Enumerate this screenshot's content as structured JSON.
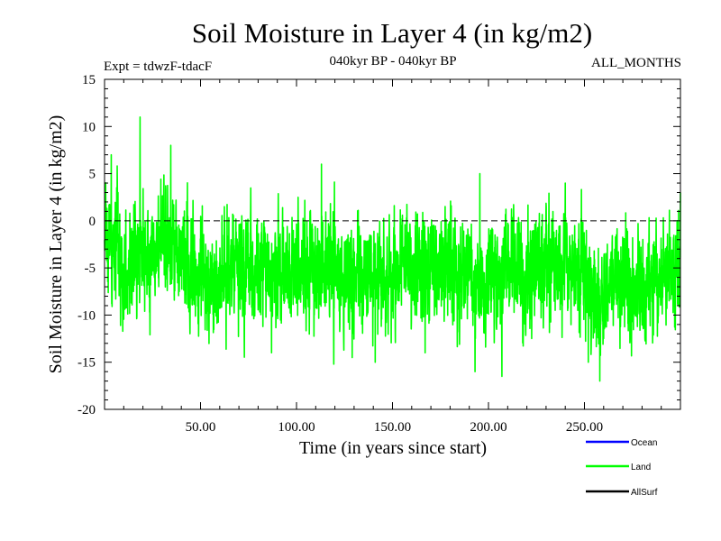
{
  "chart_data": {
    "type": "line",
    "title": "Soil Moisture in Layer 4 (in kg/m2)",
    "subtitle_left": "Expt = tdwzF-tdacF",
    "subtitle_center": "040kyr BP - 040kyr BP",
    "subtitle_right": "ALL_MONTHS",
    "xlabel": "Time (in years since start)",
    "ylabel": "Soil Moisture in Layer 4 (in kg/m2)",
    "xlim": [
      0,
      300
    ],
    "ylim": [
      -20,
      15
    ],
    "x_ticks": [
      50,
      100,
      150,
      200,
      250
    ],
    "x_tick_labels": [
      "50.00",
      "100.00",
      "150.00",
      "200.00",
      "250.00"
    ],
    "y_ticks": [
      -20,
      -15,
      -10,
      -5,
      0,
      5,
      10,
      15
    ],
    "y_tick_labels": [
      "-20",
      "-15",
      "-10",
      "-5",
      "0",
      "5",
      "10",
      "15"
    ],
    "reference_line": 0,
    "legend_position": "bottom-right",
    "series": [
      {
        "name": "Ocean",
        "label": "Ocean",
        "color": "#0000ff",
        "values": []
      },
      {
        "name": "Land",
        "label": "Land",
        "color": "#00ff00",
        "anchors": {
          "x": [
            0,
            2,
            4,
            6,
            8,
            10,
            12,
            14,
            16,
            18,
            20,
            22,
            24,
            26,
            28,
            30,
            32,
            34,
            36,
            38,
            40,
            45,
            50,
            55,
            60,
            65,
            70,
            75,
            80,
            85,
            90,
            95,
            100,
            105,
            110,
            115,
            120,
            125,
            130,
            135,
            140,
            145,
            150,
            155,
            160,
            165,
            170,
            175,
            180,
            185,
            190,
            195,
            200,
            205,
            210,
            215,
            220,
            225,
            230,
            235,
            240,
            245,
            250,
            255,
            260,
            265,
            270,
            275,
            280,
            285,
            290,
            295,
            300
          ],
          "mean": [
            -2,
            -1,
            -2,
            -3,
            -5,
            -6,
            -5,
            -4,
            -4,
            -3,
            -3,
            -4,
            -4,
            -3,
            -3,
            -2,
            -2,
            -3,
            -3,
            -3,
            -4,
            -5,
            -5,
            -6,
            -6,
            -5,
            -5,
            -5,
            -6,
            -6,
            -6,
            -6,
            -5,
            -5,
            -5,
            -5,
            -5,
            -6,
            -6,
            -6,
            -6,
            -6,
            -6,
            -5,
            -5,
            -5,
            -5,
            -5,
            -5,
            -6,
            -6,
            -6,
            -6,
            -6,
            -6,
            -5,
            -5,
            -5,
            -5,
            -5,
            -5,
            -5,
            -5,
            -8,
            -8,
            -7,
            -7,
            -7,
            -7,
            -6,
            -6,
            -6,
            -5
          ]
        },
        "variability_sd": 2.8,
        "extremes": [
          {
            "x": 18.5,
            "y": 11
          },
          {
            "x": 34.5,
            "y": 8
          },
          {
            "x": 3.5,
            "y": 7
          },
          {
            "x": 113,
            "y": 6
          },
          {
            "x": 195.5,
            "y": 5
          },
          {
            "x": 240,
            "y": 4
          },
          {
            "x": 300,
            "y": 3
          },
          {
            "x": 258,
            "y": -17
          },
          {
            "x": 207,
            "y": -16.5
          },
          {
            "x": 193,
            "y": -16
          },
          {
            "x": 141,
            "y": -15
          },
          {
            "x": 129,
            "y": -14.5
          },
          {
            "x": 87,
            "y": -14
          },
          {
            "x": 167,
            "y": -14
          },
          {
            "x": 252,
            "y": -15
          }
        ]
      },
      {
        "name": "AllSurf",
        "label": "AllSurf",
        "color": "#000000",
        "values": []
      }
    ]
  }
}
